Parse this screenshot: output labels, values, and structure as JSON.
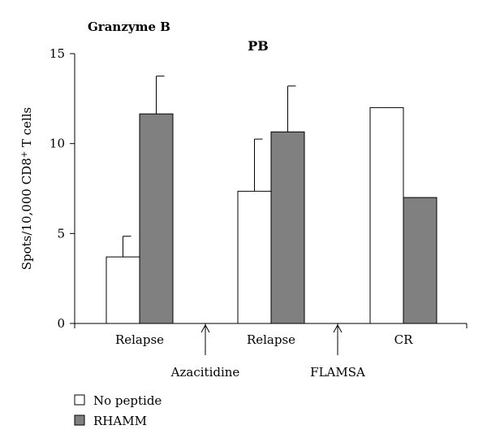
{
  "chart_data": {
    "type": "bar",
    "panel_label": "Granzyme B",
    "title": "PB",
    "ylabel_prefix": "Spots/10,000 CD8",
    "ylabel_sup": "+",
    "ylabel_suffix": " T cells",
    "xlabel": "",
    "ylim": [
      0,
      15
    ],
    "yticks": [
      0,
      5,
      10,
      15
    ],
    "categories": [
      "Relapse",
      "Relapse",
      "CR"
    ],
    "series": [
      {
        "name": "No peptide",
        "color": "#ffffff",
        "values": [
          3.7,
          7.35,
          12.0
        ],
        "errors": [
          1.15,
          2.9,
          null
        ]
      },
      {
        "name": "RHAMM",
        "color": "#808080",
        "values": [
          11.65,
          10.65,
          7.0
        ],
        "errors": [
          2.1,
          2.55,
          null
        ]
      }
    ],
    "annotations": [
      {
        "text": "Azacitidine",
        "between": [
          0,
          1
        ]
      },
      {
        "text": "FLAMSA",
        "between": [
          1,
          2
        ]
      }
    ],
    "grid": false,
    "legend_position": "bottom-left"
  }
}
